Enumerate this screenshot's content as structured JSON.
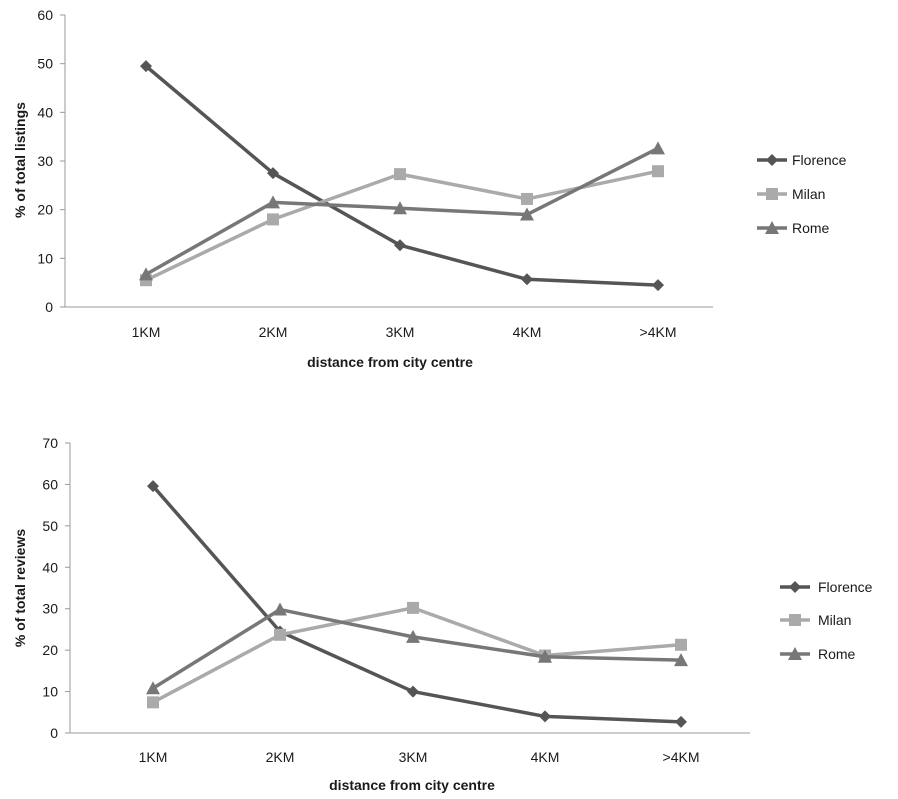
{
  "chart_data": [
    {
      "type": "line",
      "xlabel": "distance from city centre",
      "ylabel": "% of total listings",
      "ylim": [
        0,
        60
      ],
      "yticks": [
        0,
        10,
        20,
        30,
        40,
        50,
        60
      ],
      "categories": [
        "1KM",
        "2KM",
        "3KM",
        "4KM",
        ">4KM"
      ],
      "legend_position": "right",
      "series": [
        {
          "name": "Florence",
          "marker": "diamond",
          "color": "#555555",
          "values": [
            49.5,
            27.5,
            12.7,
            5.7,
            4.5
          ]
        },
        {
          "name": "Milan",
          "marker": "square",
          "color": "#aaaaaa",
          "values": [
            5.5,
            18.0,
            27.3,
            22.2,
            27.9
          ]
        },
        {
          "name": "Rome",
          "marker": "triangle",
          "color": "#777777",
          "values": [
            6.7,
            21.5,
            20.3,
            19.0,
            32.6
          ]
        }
      ]
    },
    {
      "type": "line",
      "xlabel": "distance from city centre",
      "ylabel": "% of total reviews",
      "ylim": [
        0,
        70
      ],
      "yticks": [
        0,
        10,
        20,
        30,
        40,
        50,
        60,
        70
      ],
      "categories": [
        "1KM",
        "2KM",
        "3KM",
        "4KM",
        ">4KM"
      ],
      "legend_position": "right",
      "series": [
        {
          "name": "Florence",
          "marker": "diamond",
          "color": "#555555",
          "values": [
            59.6,
            24.5,
            10.0,
            4.0,
            2.7
          ]
        },
        {
          "name": "Milan",
          "marker": "square",
          "color": "#aaaaaa",
          "values": [
            7.4,
            23.7,
            30.2,
            18.7,
            21.3
          ]
        },
        {
          "name": "Rome",
          "marker": "triangle",
          "color": "#777777",
          "values": [
            10.8,
            29.8,
            23.2,
            18.4,
            17.6
          ]
        }
      ]
    }
  ]
}
